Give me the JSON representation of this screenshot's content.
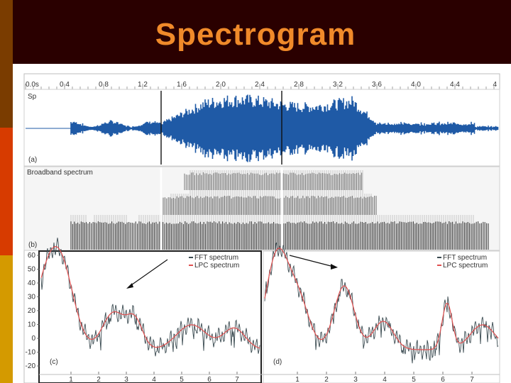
{
  "slide": {
    "title": "Spectrogram",
    "colors": {
      "title_bg": "#2a0000",
      "title_text": "#f08a2a",
      "bar_brown": "#7a3c00",
      "bar_red": "#d73b00",
      "bar_gold": "#d49a00"
    }
  },
  "figure": {
    "time_axis": {
      "labels": [
        "0.0s",
        "0.4",
        "0.8",
        "1.2",
        "1.6",
        "2.0",
        "2.4",
        "2.8",
        "3.2",
        "3.6",
        "4.0",
        "4.4",
        "4"
      ]
    },
    "waveform": {
      "label": "Sp",
      "panel_tag": "(a)",
      "color": "#1f5aa6"
    },
    "spectrogram": {
      "label": "Broadband spectrum",
      "panel_tag": "(b)"
    },
    "panel_c": {
      "tag": "(c)",
      "legend": [
        "FFT spectrum",
        "LPC spectrum"
      ],
      "y_ticks": [
        "60",
        "50",
        "40",
        "30",
        "20",
        "10",
        "0",
        "-10",
        "-20"
      ],
      "x_ticks": [
        "1",
        "2",
        "3",
        "4",
        "5",
        "6",
        "7"
      ]
    },
    "panel_d": {
      "tag": "(d)",
      "legend": [
        "FFT spectrum",
        "LPC spectrum"
      ],
      "x_ticks": [
        "1",
        "2",
        "3",
        "4",
        "5",
        "6",
        "7"
      ]
    },
    "series_colors": {
      "fft": "#3a4a50",
      "lpc": "#e05050"
    }
  }
}
